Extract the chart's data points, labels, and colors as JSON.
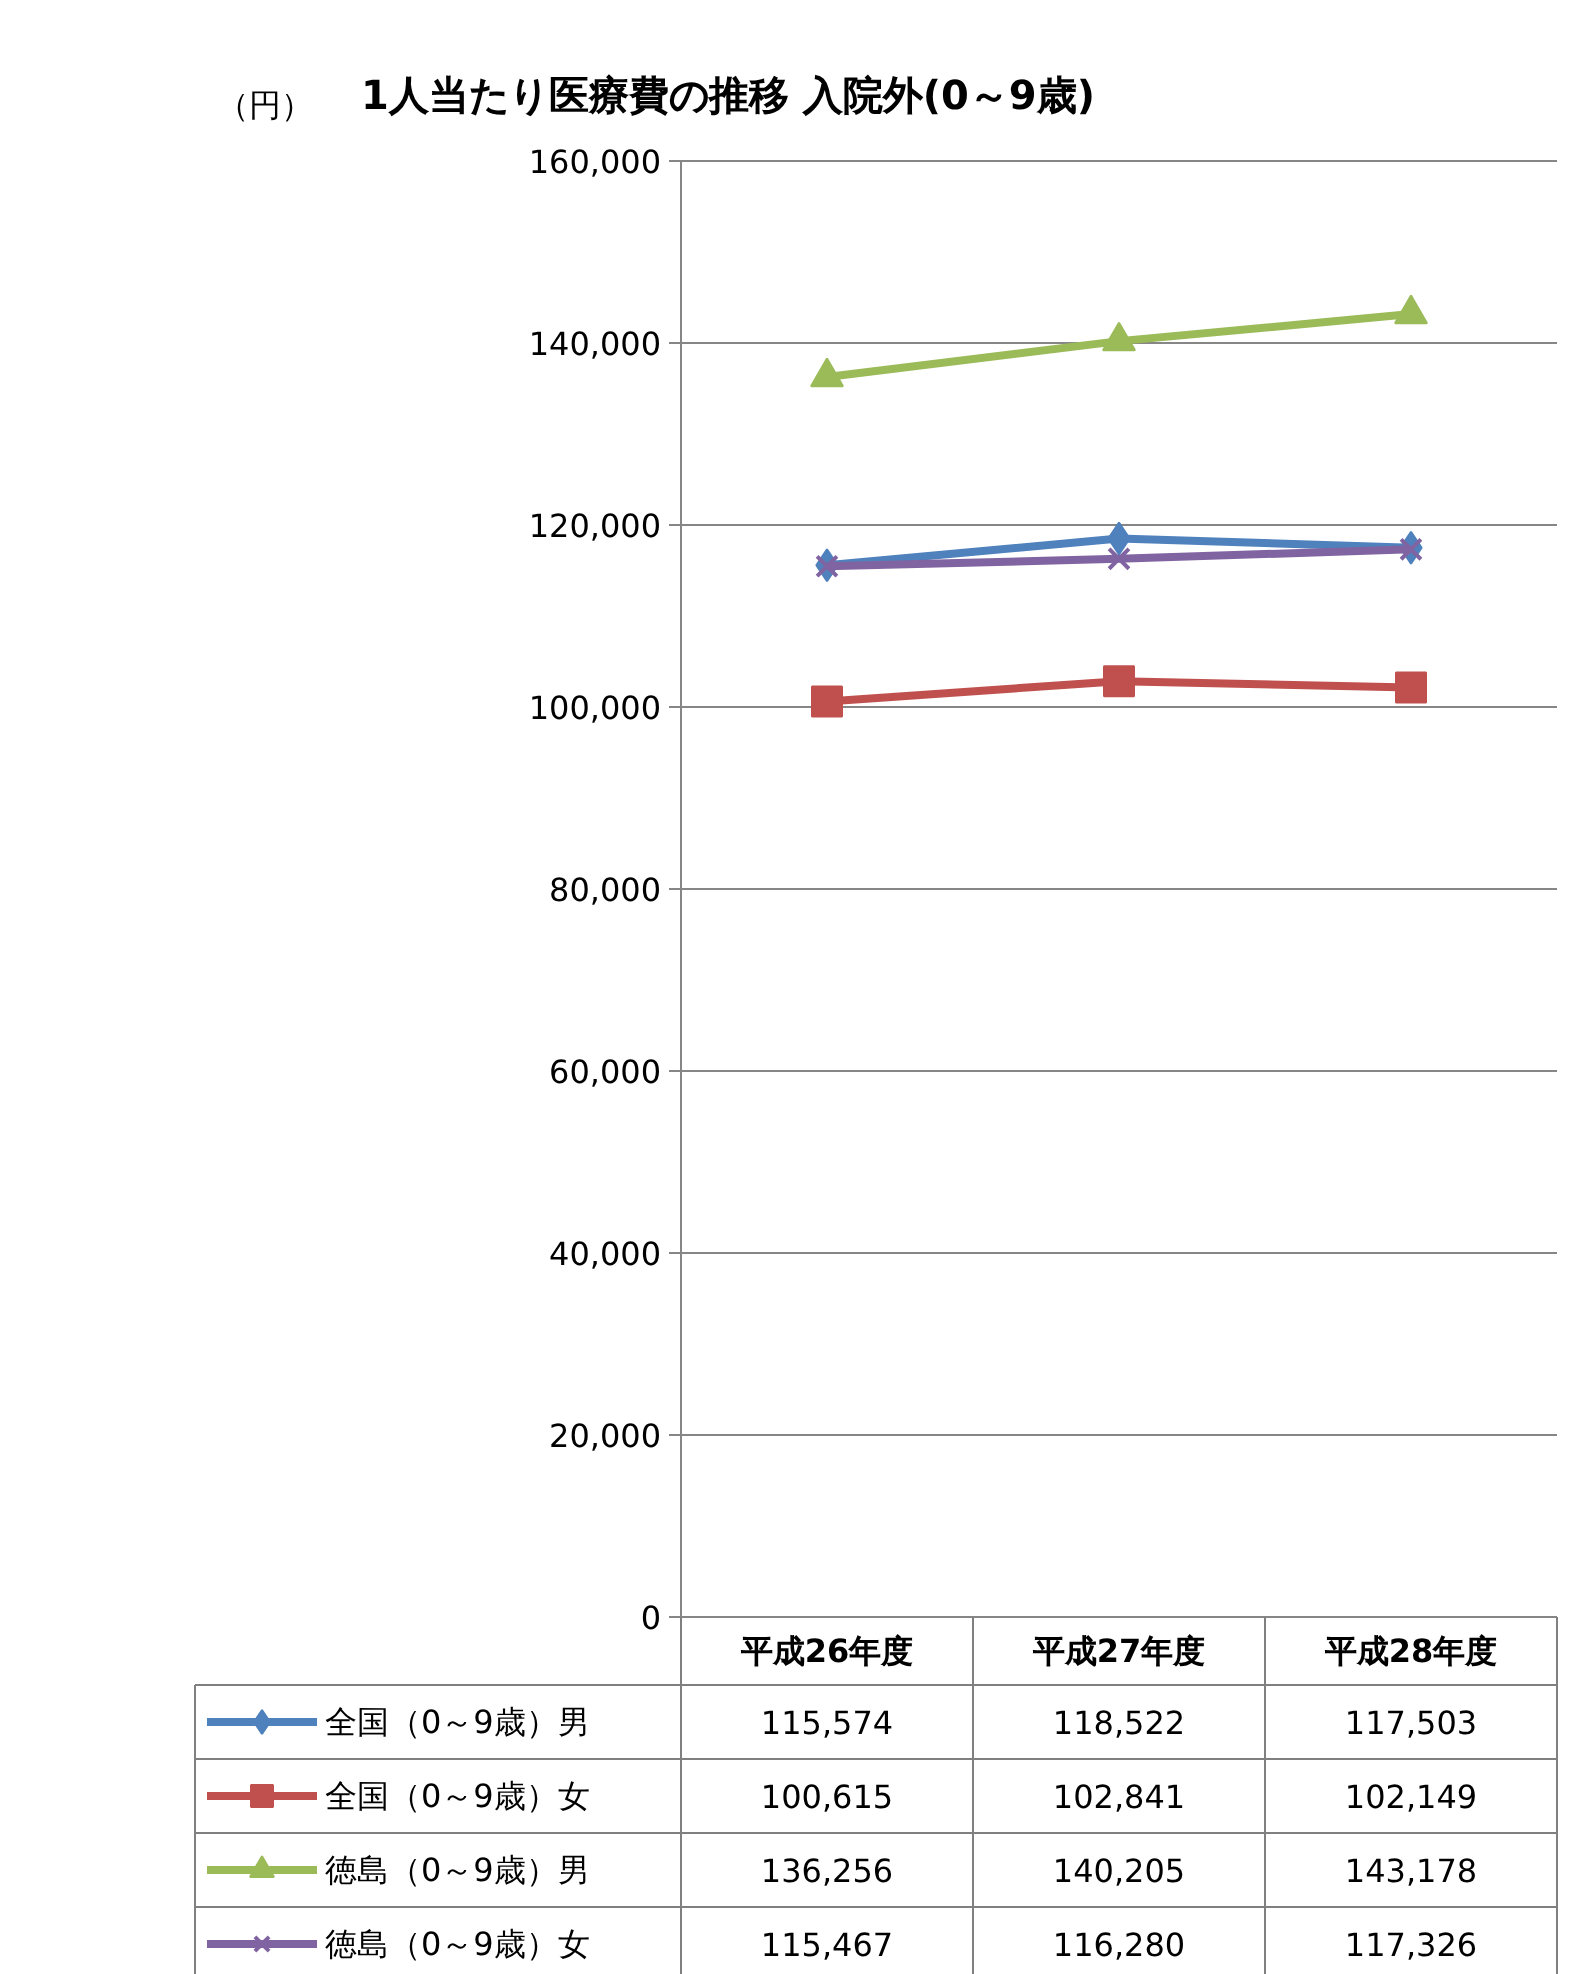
{
  "chart_data": {
    "type": "line",
    "title": "1人当たり医療費の推移  入院外(0～9歳)",
    "annotations": [
      "（円）"
    ],
    "categories": [
      "平成26年度",
      "平成27年度",
      "平成28年度"
    ],
    "series": [
      {
        "name": "全国（0～9歳）男",
        "color": "#4f81bd",
        "marker": "diamond",
        "values": [
          115574,
          118522,
          117503
        ],
        "value_labels": [
          "115,574",
          "118,522",
          "117,503"
        ]
      },
      {
        "name": "全国（0～9歳）女",
        "color": "#c0504d",
        "marker": "square",
        "values": [
          100615,
          102841,
          102149
        ],
        "value_labels": [
          "100,615",
          "102,841",
          "102,149"
        ]
      },
      {
        "name": "徳島（0～9歳）男",
        "color": "#9bbb59",
        "marker": "triangle",
        "values": [
          136256,
          140205,
          143178
        ],
        "value_labels": [
          "136,256",
          "140,205",
          "143,178"
        ]
      },
      {
        "name": "徳島（0～9歳）女",
        "color": "#8064a2",
        "marker": "cross",
        "values": [
          115467,
          116280,
          117326
        ],
        "value_labels": [
          "115,467",
          "116,280",
          "117,326"
        ]
      }
    ],
    "ylim": [
      0,
      160000
    ],
    "yticks": [
      0,
      {
        "value": 20000,
        "label": "20,000"
      },
      {
        "value": 40000,
        "label": "40,000"
      },
      {
        "value": 60000,
        "label": "60,000"
      },
      {
        "value": 80000,
        "label": "80,000"
      },
      {
        "value": 100000,
        "label": "100,000"
      },
      {
        "value": 120000,
        "label": "120,000"
      },
      {
        "value": 140000,
        "label": "140,000"
      },
      {
        "value": 160000,
        "label": "160,000"
      }
    ],
    "grid": "y",
    "legend": "bottom",
    "line_style": "solid"
  }
}
